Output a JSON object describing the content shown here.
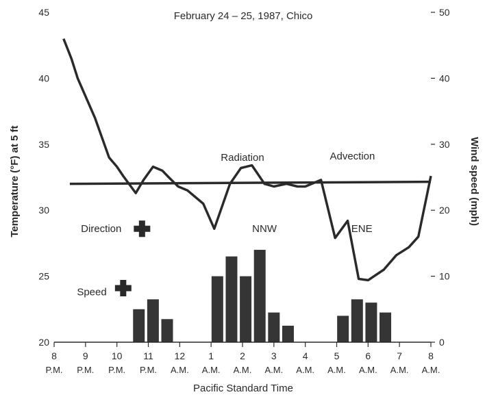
{
  "chart_data": {
    "type": "line",
    "title": "February 24 – 25, 1987, Chico",
    "xlabel": "Pacific Standard Time",
    "ylabel_left": "Temperature (°F) at 5 ft",
    "ylabel_right": "Wind speed (mph)",
    "x_ticks": [
      {
        "hour": "8",
        "period": "P.M."
      },
      {
        "hour": "9",
        "period": "P.M."
      },
      {
        "hour": "10",
        "period": "P.M."
      },
      {
        "hour": "11",
        "period": "P.M."
      },
      {
        "hour": "12",
        "period": "A.M."
      },
      {
        "hour": "1",
        "period": "A.M."
      },
      {
        "hour": "2",
        "period": "A.M."
      },
      {
        "hour": "3",
        "period": "A.M."
      },
      {
        "hour": "4",
        "period": "A.M."
      },
      {
        "hour": "5",
        "period": "A.M."
      },
      {
        "hour": "6",
        "period": "A.M."
      },
      {
        "hour": "7",
        "period": "A.M."
      },
      {
        "hour": "8",
        "period": "A.M."
      }
    ],
    "x_range": [
      0,
      12
    ],
    "ylim_left": [
      20,
      45
    ],
    "yticks_left": [
      "20",
      "25",
      "30",
      "35",
      "40",
      "45"
    ],
    "ylim_right": [
      0,
      50
    ],
    "yticks_right": [
      "0",
      "10",
      "20",
      "30",
      "40",
      "50"
    ],
    "temperature": {
      "x": [
        0.3,
        0.55,
        0.75,
        1.3,
        1.75,
        2.0,
        2.2,
        2.6,
        2.85,
        3.15,
        3.45,
        3.65,
        3.95,
        4.25,
        4.75,
        5.1,
        5.6,
        5.95,
        6.3,
        6.7,
        7.0,
        7.4,
        7.75,
        8.0,
        8.5,
        8.95,
        9.35,
        9.7,
        10.0,
        10.5,
        10.9,
        11.3,
        11.6,
        12.0
      ],
      "y": [
        43,
        41.5,
        40,
        37,
        34,
        33.3,
        32.6,
        31.3,
        32.3,
        33.3,
        33.0,
        32.5,
        31.8,
        31.5,
        30.5,
        28.6,
        32.0,
        33.2,
        33.4,
        32.0,
        31.8,
        32.0,
        31.8,
        31.8,
        32.3,
        27.9,
        29.2,
        24.8,
        24.7,
        25.5,
        26.6,
        27.2,
        28.0,
        32.6
      ]
    },
    "reference_line": {
      "y": 32
    },
    "wind_speed_bars": [
      {
        "x": 2.7,
        "value": 5
      },
      {
        "x": 3.15,
        "value": 6.5
      },
      {
        "x": 3.6,
        "value": 3.5
      },
      {
        "x": 5.2,
        "value": 10
      },
      {
        "x": 5.65,
        "value": 13
      },
      {
        "x": 6.1,
        "value": 10
      },
      {
        "x": 6.55,
        "value": 14
      },
      {
        "x": 7.0,
        "value": 4.5
      },
      {
        "x": 7.45,
        "value": 2.5
      },
      {
        "x": 9.2,
        "value": 4
      },
      {
        "x": 9.65,
        "value": 6.5
      },
      {
        "x": 10.1,
        "value": 6
      },
      {
        "x": 10.55,
        "value": 4.5
      }
    ],
    "annotations": [
      {
        "text": "Radiation",
        "x": 6.0,
        "y": 34.0
      },
      {
        "text": "Advection",
        "x": 9.5,
        "y": 34.1
      },
      {
        "text": "NNW",
        "x": 6.7,
        "y": 28.6
      },
      {
        "text": "ENE",
        "x": 9.8,
        "y": 28.6
      },
      {
        "text": "Direction",
        "x": 1.5,
        "y": 28.6
      },
      {
        "text": "Speed",
        "x": 1.2,
        "y": 23.8
      }
    ],
    "direction_markers": [
      {
        "name": "direction-marker",
        "x": 2.8,
        "y": 28.6
      },
      {
        "name": "speed-marker",
        "x": 2.2,
        "y": 24.1
      }
    ],
    "colors": {
      "ink": "#2a2a2a",
      "bar": "#353535"
    }
  }
}
